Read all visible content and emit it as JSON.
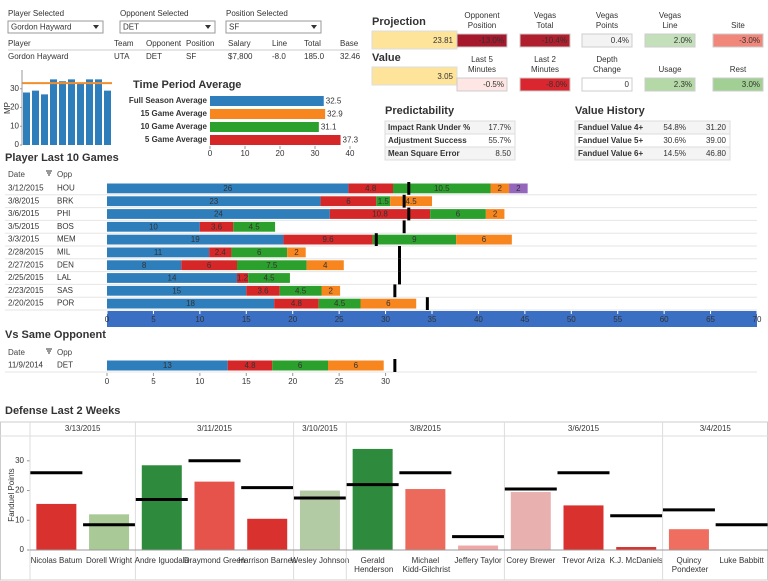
{
  "filters": [
    {
      "label": "Player Selected",
      "value": "Gordon Hayward"
    },
    {
      "label": "Opponent Selected",
      "value": "DET"
    },
    {
      "label": "Position Selected",
      "value": "SF"
    }
  ],
  "player_table": {
    "headers": [
      "Player",
      "Team",
      "Opponent",
      "Position",
      "Salary",
      "Line",
      "Total",
      "Base"
    ],
    "row": [
      "Gordon Hayward",
      "UTA",
      "DET",
      "SF",
      "$7,800",
      "-8.0",
      "185.0",
      "32.46"
    ]
  },
  "minutes_chart": {
    "type": "bar",
    "axis_label": "MP",
    "color": "#2f7ebc",
    "values": [
      28,
      29,
      27,
      35,
      34,
      35,
      33,
      35,
      35,
      29
    ],
    "reference": 33,
    "reference_color": "#f28e2b",
    "ylim": [
      0,
      40
    ],
    "yticks": [
      0,
      10,
      20,
      30
    ]
  },
  "time_period": {
    "type": "bar",
    "title": "Time Period Average",
    "categories": [
      "Full Season Average",
      "15 Game Average",
      "10 Game Average",
      "5 Game Average"
    ],
    "values": [
      32.5,
      32.9,
      31.1,
      37.3
    ],
    "colors": [
      "#2f7ebc",
      "#f7861f",
      "#2ca02c",
      "#d62728"
    ],
    "xlim": [
      0,
      40
    ],
    "xticks": [
      0,
      10,
      20,
      30,
      40
    ]
  },
  "projection": {
    "label": "Projection",
    "value": "23.81",
    "color": "#fde49a"
  },
  "value": {
    "label": "Value",
    "value": "3.05",
    "color": "#fde49a"
  },
  "factors": [
    {
      "label": [
        "Opponent",
        "Position"
      ],
      "value": "-13.0%",
      "color": "#a6182c",
      "text_color": "#ffffff"
    },
    {
      "label": [
        "Vegas",
        "Total"
      ],
      "value": "-10.4%",
      "color": "#b01f2d",
      "text_color": "#ffffff"
    },
    {
      "label": [
        "Vegas",
        "Points"
      ],
      "value": "0.4%",
      "color": "#f3f3f3",
      "text_color": "#333333"
    },
    {
      "label": [
        "Vegas",
        "Line"
      ],
      "value": "2.0%",
      "color": "#c3e0bb",
      "text_color": "#333333"
    },
    {
      "label": [
        "Site"
      ],
      "value": "-3.0%",
      "color": "#f0877a",
      "text_color": "#333333"
    },
    {
      "label": [
        "Last 5",
        "Minutes"
      ],
      "value": "-0.5%",
      "color": "#fde6e3",
      "text_color": "#333333"
    },
    {
      "label": [
        "Last 2",
        "Minutes"
      ],
      "value": "-8.0%",
      "color": "#d9262f",
      "text_color": "#ffffff"
    },
    {
      "label": [
        "Depth",
        "Change"
      ],
      "value": "0",
      "color": "#ffffff",
      "text_color": "#333333"
    },
    {
      "label": [
        "Usage"
      ],
      "value": "2.3%",
      "color": "#b4d9a6",
      "text_color": "#333333"
    },
    {
      "label": [
        "Rest"
      ],
      "value": "3.0%",
      "color": "#a2cf93",
      "text_color": "#333333"
    }
  ],
  "predictability": {
    "title": "Predictability",
    "rows": [
      [
        "Impact Rank Under %",
        "17.7%"
      ],
      [
        "Adjustment Success",
        "55.7%"
      ],
      [
        "Mean Square Error",
        "8.50"
      ]
    ]
  },
  "value_history": {
    "title": "Value History",
    "rows": [
      [
        "Fanduel Value 4+",
        "54.8%",
        "31.20"
      ],
      [
        "Fanduel Value 5+",
        "30.6%",
        "39.00"
      ],
      [
        "Fanduel Value 6+",
        "14.5%",
        "46.80"
      ]
    ]
  },
  "last10": {
    "type": "bar",
    "title": "Player Last 10 Games",
    "headers": [
      "Date",
      "Opp"
    ],
    "dates": [
      "3/12/2015",
      "3/8/2015",
      "3/6/2015",
      "3/5/2015",
      "3/3/2015",
      "2/28/2015",
      "2/27/2015",
      "2/25/2015",
      "2/23/2015",
      "2/20/2015"
    ],
    "categories": [
      "HOU",
      "BRK",
      "PHI",
      "BOS",
      "MEM",
      "MIL",
      "DEN",
      "LAL",
      "SAS",
      "POR"
    ],
    "series": [
      {
        "color": "#2f7ebc",
        "values": [
          26,
          23,
          24,
          10,
          19,
          11,
          8,
          14,
          15,
          18
        ]
      },
      {
        "color": "#d62728",
        "values": [
          4.8,
          6,
          10.8,
          3.6,
          9.6,
          2.4,
          6,
          1.2,
          3.6,
          4.8
        ]
      },
      {
        "color": "#2ca02c",
        "values": [
          10.5,
          1.5,
          6,
          4.5,
          9,
          6,
          7.5,
          4.5,
          4.5,
          4.5
        ]
      },
      {
        "color": "#f7861f",
        "values": [
          2,
          4.5,
          2,
          0,
          6,
          2,
          4,
          0,
          2,
          6
        ]
      },
      {
        "color": "#9467bd",
        "values": [
          2,
          0,
          0,
          0,
          0,
          0,
          0,
          0,
          0,
          0
        ]
      }
    ],
    "markers": [
      32.5,
      32,
      32.5,
      32,
      29,
      31.5,
      31.5,
      31.5,
      31,
      34.5
    ],
    "xlim": [
      0,
      70
    ],
    "xticks": [
      0,
      5,
      10,
      15,
      20,
      25,
      30,
      35,
      40,
      45,
      50,
      55,
      60,
      65,
      70
    ]
  },
  "vs_opp": {
    "type": "bar",
    "title": "Vs Same Opponent",
    "headers": [
      "Date",
      "Opp"
    ],
    "dates": [
      "11/9/2014"
    ],
    "categories": [
      "DET"
    ],
    "series": [
      {
        "color": "#2f7ebc",
        "values": [
          13
        ]
      },
      {
        "color": "#d62728",
        "values": [
          4.8
        ]
      },
      {
        "color": "#2ca02c",
        "values": [
          6
        ]
      },
      {
        "color": "#f7861f",
        "values": [
          6
        ]
      }
    ],
    "markers": [
      31
    ],
    "xlim": [
      0,
      35
    ],
    "xticks": [
      0,
      5,
      10,
      15,
      20,
      25,
      30
    ]
  },
  "defense": {
    "type": "bar",
    "title": "Defense Last 2 Weeks",
    "axis_label": "Fanduel Points",
    "ylim": [
      0,
      37
    ],
    "yticks": [
      0,
      10,
      20,
      30
    ],
    "groups": [
      {
        "date": "3/13/2015",
        "categories": [
          "Nicolas Batum",
          "Dorell Wright"
        ],
        "values": [
          15.5,
          12
        ],
        "expected": [
          26,
          8.5
        ],
        "colors": [
          "#d9322e",
          "#a9c997"
        ]
      },
      {
        "date": "3/11/2015",
        "categories": [
          "Andre Iguodala",
          "Draymond Green",
          "Harrison Barnes"
        ],
        "values": [
          28.5,
          23,
          10.5
        ],
        "expected": [
          17,
          30,
          21
        ],
        "colors": [
          "#2e8b3e",
          "#e5534b",
          "#d9322e"
        ]
      },
      {
        "date": "3/10/2015",
        "categories": [
          "Wesley Johnson"
        ],
        "values": [
          20
        ],
        "expected": [
          17.5
        ],
        "colors": [
          "#b3cba4"
        ]
      },
      {
        "date": "3/8/2015",
        "categories": [
          "Gerald Henderson",
          "Michael Kidd-Gilchrist",
          "Jeffery Taylor"
        ],
        "values": [
          34,
          20.5,
          1.5
        ],
        "expected": [
          22,
          26,
          4.5
        ],
        "colors": [
          "#2e8b3e",
          "#ec6a5c",
          "#f0a8a4"
        ]
      },
      {
        "date": "3/6/2015",
        "categories": [
          "Corey Brewer",
          "Trevor Ariza",
          "K.J. McDaniels"
        ],
        "values": [
          19.5,
          15,
          1
        ],
        "expected": [
          20.5,
          26,
          11.5
        ],
        "colors": [
          "#e9b0b0",
          "#d9322e",
          "#d9322e"
        ]
      },
      {
        "date": "3/4/2015",
        "categories": [
          "Quincy Pondexter",
          "Luke Babbitt"
        ],
        "values": [
          7,
          0
        ],
        "expected": [
          13.5,
          8.5
        ],
        "colors": [
          "#ef6e60",
          "#d9322e"
        ]
      }
    ]
  }
}
